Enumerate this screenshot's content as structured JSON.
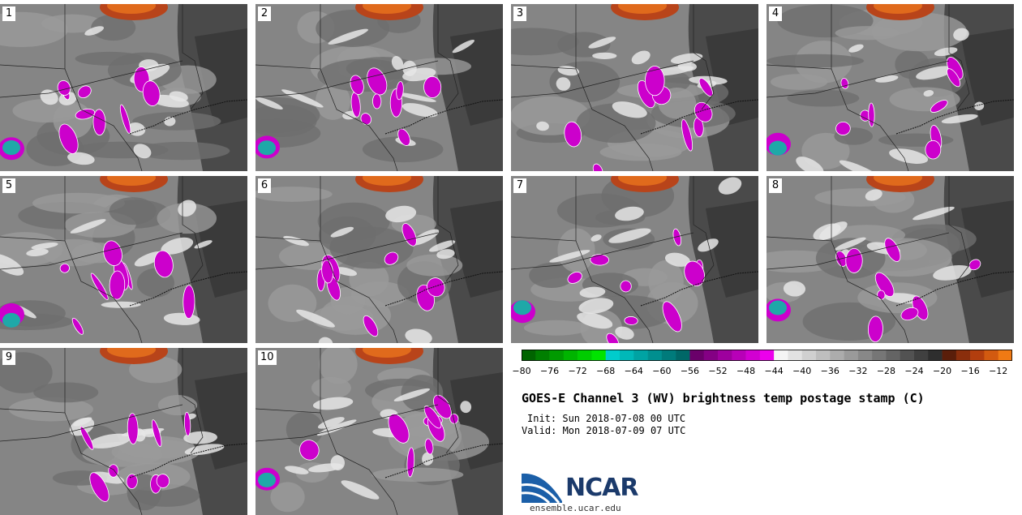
{
  "panels": [
    {
      "label": "1"
    },
    {
      "label": "2"
    },
    {
      "label": "3"
    },
    {
      "label": "4"
    },
    {
      "label": "5"
    },
    {
      "label": "6"
    },
    {
      "label": "7"
    },
    {
      "label": "8"
    },
    {
      "label": "9"
    },
    {
      "label": "10"
    }
  ],
  "chart_data": {
    "type": "heatmap",
    "title": "GOES-E Channel 3 (WV) brightness temp postage stamp (C)",
    "init": "Init: Sun 2018-07-08 00 UTC",
    "valid": "Valid: Mon 2018-07-09 07 UTC",
    "colorbar": {
      "range": [
        -80,
        -10
      ],
      "step": 2,
      "tick_values": [
        -80,
        -76,
        -72,
        -68,
        -64,
        -60,
        -56,
        -52,
        -48,
        -44,
        -40,
        -36,
        -32,
        -28,
        -24,
        -20,
        -16,
        -12
      ],
      "tick_labels": [
        "−80",
        "−76",
        "−72",
        "−68",
        "−64",
        "−60",
        "−56",
        "−52",
        "−48",
        "−44",
        "−40",
        "−36",
        "−32",
        "−28",
        "−24",
        "−20",
        "−16",
        "−12"
      ],
      "colors": [
        "#006400",
        "#007f00",
        "#009a00",
        "#00b400",
        "#00cc00",
        "#00e400",
        "#00cccc",
        "#00b8b8",
        "#00a3a3",
        "#008f8f",
        "#007b7b",
        "#006767",
        "#6a006a",
        "#840084",
        "#9e009e",
        "#b800b8",
        "#d200d2",
        "#ec00ec",
        "#f4f4f4",
        "#e2e2e2",
        "#d0d0d0",
        "#bebebe",
        "#acacac",
        "#9a9a9a",
        "#888888",
        "#767676",
        "#646464",
        "#525252",
        "#404040",
        "#2e2e2e",
        "#5a1e0a",
        "#8a2e0c",
        "#b23e0e",
        "#d25a10",
        "#f07a14",
        "#e8581c",
        "#cc3010"
      ]
    }
  },
  "branding": {
    "logo_text": "NCAR",
    "url": "ensemble.ucar.edu"
  }
}
